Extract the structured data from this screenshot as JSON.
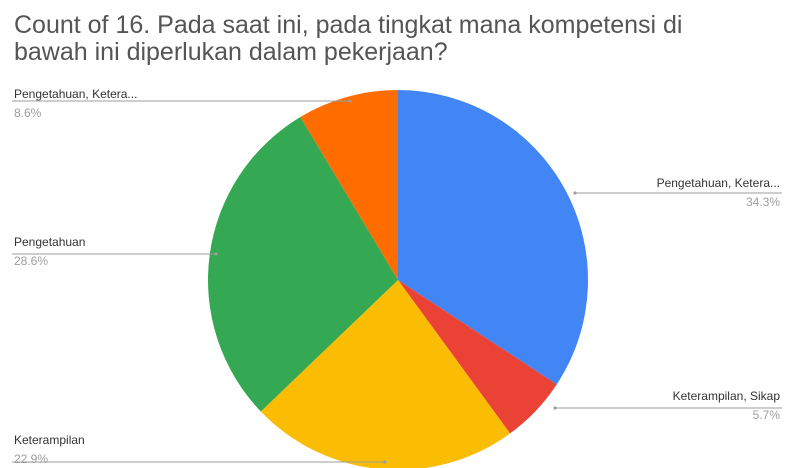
{
  "chart_data": {
    "type": "pie",
    "title_lines": [
      "Count of 16. Pada saat ini, pada tingkat mana kompetensi di",
      "bawah ini diperlukan dalam pekerjaan?"
    ],
    "slices": [
      {
        "label": "Pengetahuan, Ketera...",
        "value": 34.3,
        "pct_label": "34.3%",
        "color": "#4285f4"
      },
      {
        "label": "Keterampilan, Sikap",
        "value": 5.7,
        "pct_label": "5.7%",
        "color": "#ea4335"
      },
      {
        "label": "Keterampilan",
        "value": 22.9,
        "pct_label": "22.9%",
        "color": "#fbbc04"
      },
      {
        "label": "Pengetahuan",
        "value": 28.6,
        "pct_label": "28.6%",
        "color": "#34a853"
      },
      {
        "label": "Pengetahuan, Ketera...",
        "value": 8.6,
        "pct_label": "8.6%",
        "color": "#ff6d01"
      }
    ],
    "legend": "none",
    "label_style": "callout"
  }
}
